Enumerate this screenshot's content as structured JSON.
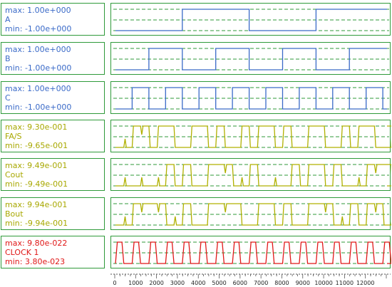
{
  "chart_data": {
    "type": "line",
    "x_min": 0,
    "x_max": 13000,
    "x_ticks": [
      0,
      1000,
      2000,
      3000,
      4000,
      5000,
      6000,
      7000,
      8000,
      9000,
      10000,
      11000,
      12000
    ],
    "x_tick_labels": [
      "0",
      "1000",
      "2000",
      "3000",
      "4000",
      "5000",
      "6000",
      "7000",
      "8000",
      "9000",
      "10000",
      "11000",
      "12000"
    ],
    "grid": true,
    "series": [
      {
        "name": "A",
        "max_label": "max: 1.00e+000",
        "min_label": "min: -1.00e+000",
        "color": "#3a6ac8",
        "text_color": "#3a6ac8",
        "ymin": -1,
        "ymax": 1,
        "edges": [
          3200,
          6400,
          9600
        ],
        "initial": 0
      },
      {
        "name": "B",
        "max_label": "max: 1.00e+000",
        "min_label": "min: -1.00e+000",
        "color": "#3a6ac8",
        "text_color": "#3a6ac8",
        "ymin": -1,
        "ymax": 1,
        "edges": [
          1600,
          3200,
          4800,
          6400,
          8000,
          9600,
          11200
        ],
        "initial": 0
      },
      {
        "name": "C",
        "max_label": "max: 1.00e+000",
        "min_label": "min: -1.00e+000",
        "color": "#3a6ac8",
        "text_color": "#3a6ac8",
        "ymin": -1,
        "ymax": 1,
        "edges": [
          800,
          1600,
          2400,
          3200,
          4000,
          4800,
          5600,
          6400,
          7200,
          8000,
          8800,
          9600,
          10400,
          11200,
          12000,
          12800
        ],
        "initial": 0
      },
      {
        "name": "FA/S",
        "max_label": "max: 9.30e-001",
        "min_label": "min: -9.65e-001",
        "color": "#b0b000",
        "text_color": "#a8a800",
        "ymin": -0.965,
        "ymax": 0.93,
        "glitch_period": 400,
        "glitch_width": 120,
        "bits": [
          0,
          0,
          1,
          1,
          0,
          1,
          1,
          0,
          0,
          1,
          1,
          0,
          1,
          0,
          0,
          1,
          0,
          1,
          1,
          0,
          1,
          0,
          0,
          1,
          1,
          0,
          0,
          1,
          0,
          1,
          1,
          0,
          0,
          1
        ]
      },
      {
        "name": "Cout",
        "max_label": "max: 9.49e-001",
        "min_label": "min: -9.49e-001",
        "color": "#b0b000",
        "text_color": "#a8a800",
        "ymin": -0.949,
        "ymax": 0.949,
        "glitch_period": 400,
        "glitch_width": 120,
        "bits": [
          0,
          0,
          0,
          0,
          0,
          0,
          1,
          0,
          1,
          0,
          0,
          1,
          1,
          1,
          0,
          0,
          1,
          0,
          0,
          0,
          0,
          1,
          0,
          1,
          1,
          0,
          1,
          0,
          0,
          0,
          1,
          1,
          1,
          0
        ]
      },
      {
        "name": "Bout",
        "max_label": "max: 9.94e-001",
        "min_label": "min: -9.94e-001",
        "color": "#b0b000",
        "text_color": "#a8a800",
        "ymin": -0.994,
        "ymax": 0.994,
        "glitch_period": 400,
        "glitch_width": 120,
        "bits": [
          0,
          0,
          1,
          1,
          1,
          1,
          0,
          0,
          1,
          0,
          0,
          1,
          1,
          1,
          1,
          0,
          0,
          1,
          1,
          0,
          1,
          0,
          0,
          1,
          1,
          1,
          0,
          0,
          1,
          0,
          1,
          1,
          0,
          0
        ]
      },
      {
        "name": "CLOCK 1",
        "max_label": "max: 9.80e-022",
        "min_label": "min: 3.80e-023",
        "color": "#e01818",
        "text_color": "#e01818",
        "ymin": 3.8e-23,
        "ymax": 9.8e-22,
        "clock_period": 800
      }
    ]
  }
}
